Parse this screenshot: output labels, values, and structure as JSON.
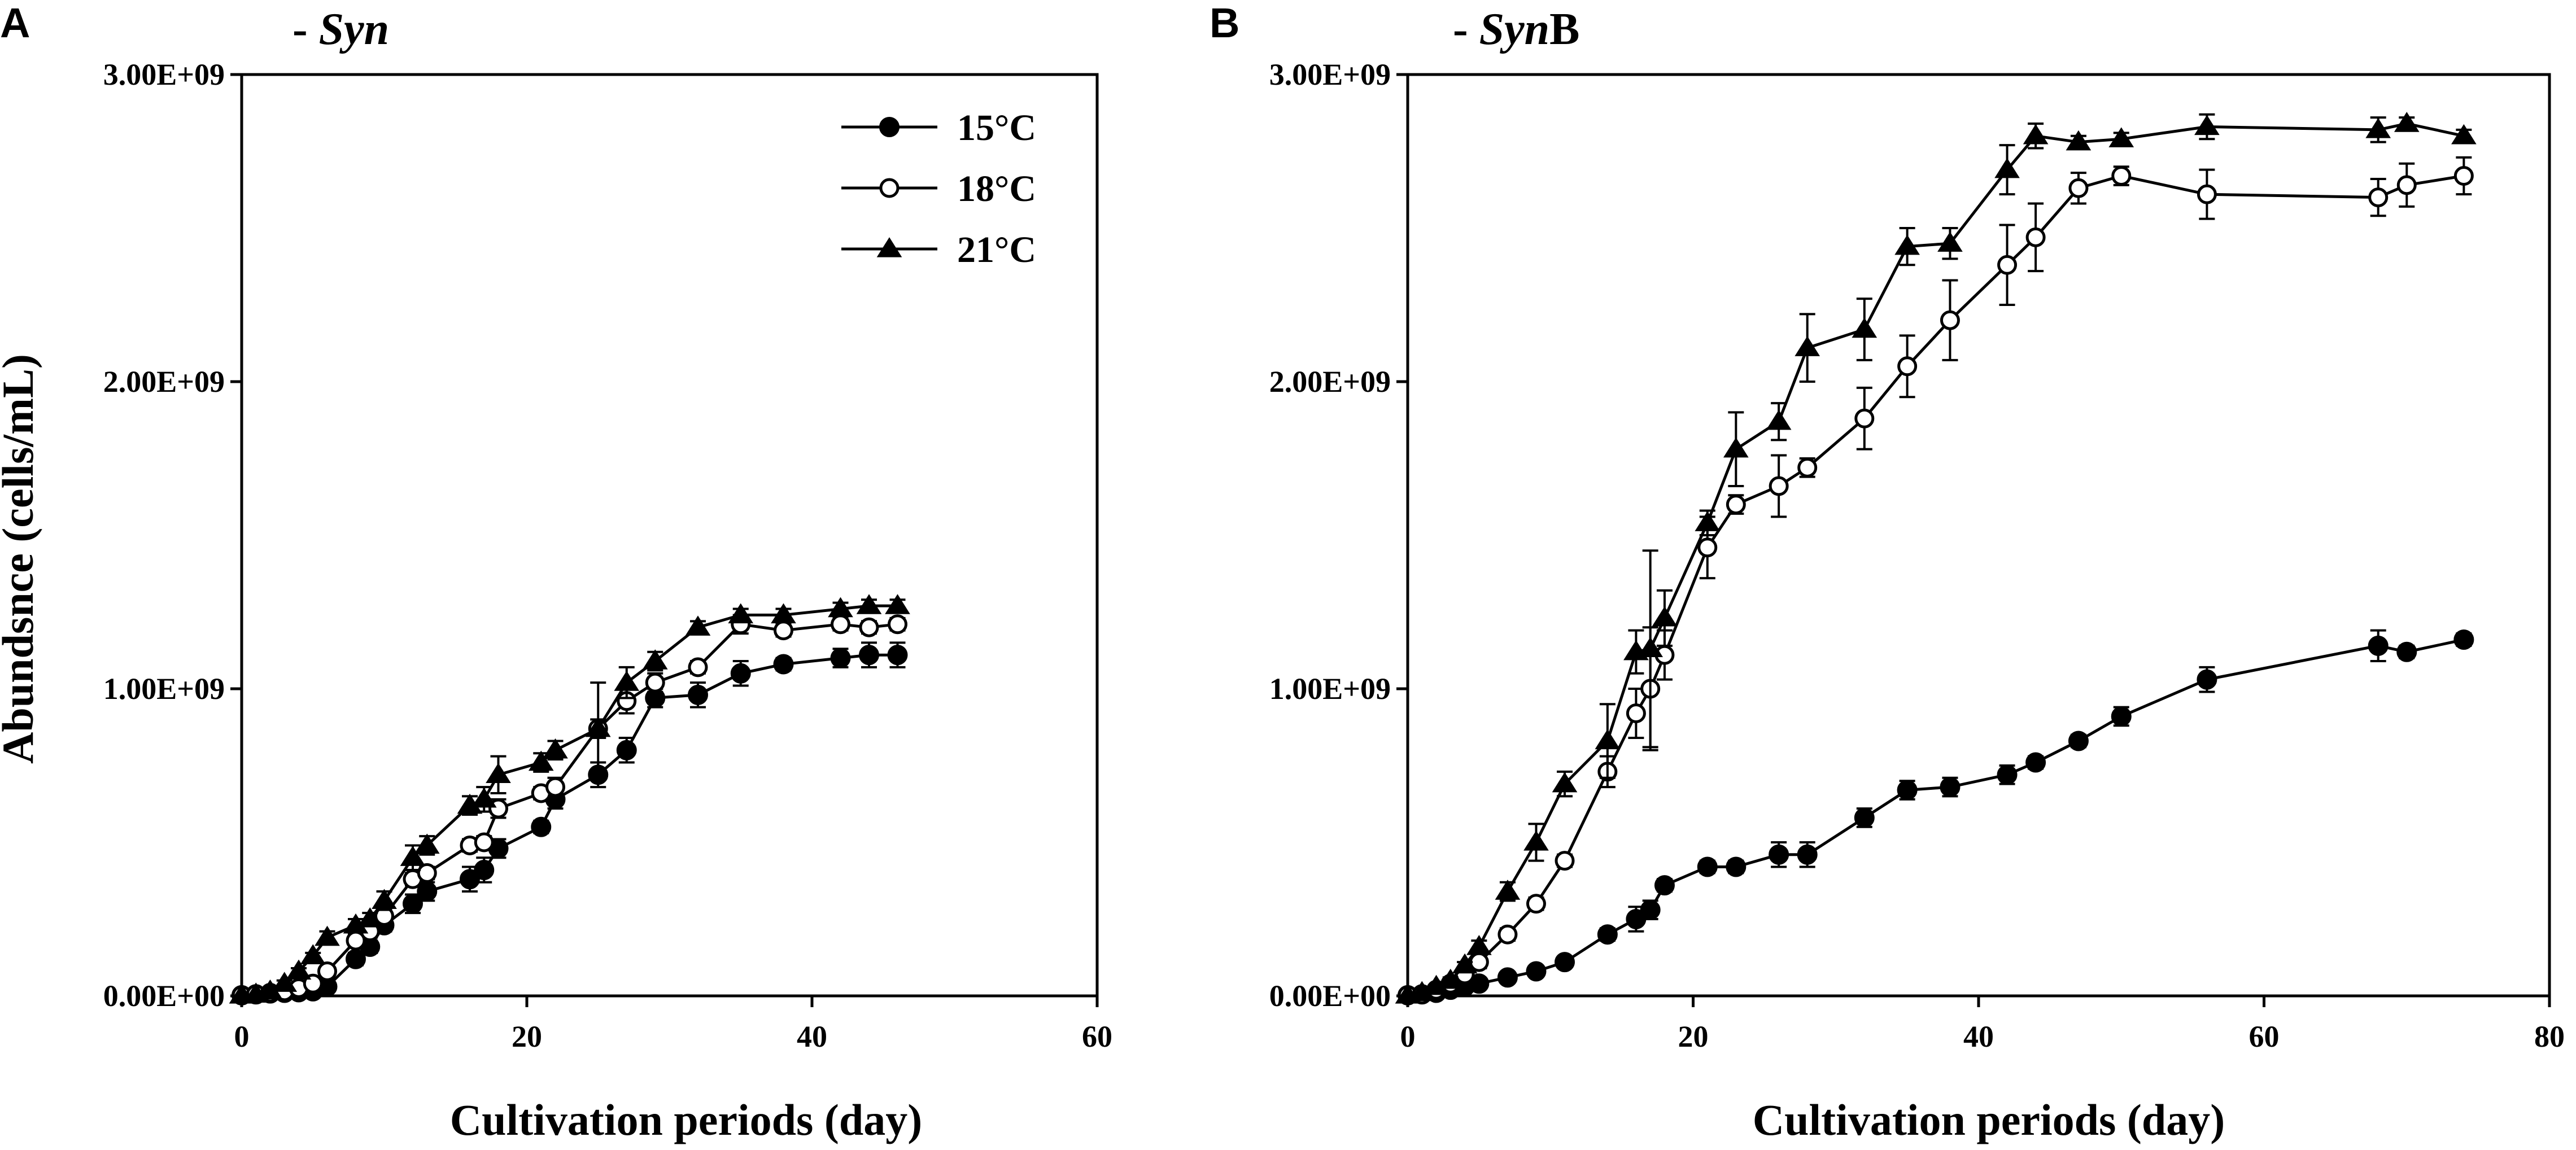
{
  "chart_data": [
    {
      "type": "line",
      "panel_label": "A",
      "title_prefix": "- ",
      "title_italic": "Syn",
      "title_suffix": "",
      "xlabel": "Cultivation periods (day)",
      "ylabel": "Abundsnce (cells/mL)",
      "xlim": [
        0,
        60
      ],
      "ylim": [
        0,
        3000000000
      ],
      "xticks": [
        0,
        20,
        40,
        60
      ],
      "xtick_labels": [
        "0",
        "20",
        "40",
        "60"
      ],
      "yticks": [
        0,
        1000000000,
        2000000000,
        3000000000
      ],
      "ytick_labels": [
        "0.00E+00",
        "1.00E+09",
        "2.00E+09",
        "3.00E+09"
      ],
      "legend": {
        "placement": "top-right",
        "entries": [
          "15°C",
          "18°C",
          "21°C"
        ]
      },
      "series": [
        {
          "name": "15°C",
          "marker": "filled-circle",
          "x": [
            0,
            1,
            2,
            3,
            4,
            5,
            6,
            8,
            9,
            10,
            12,
            13,
            16,
            17,
            18,
            21,
            22,
            25,
            27,
            29,
            32,
            35,
            38,
            42,
            44,
            46
          ],
          "y": [
            2000000,
            5000000,
            8000000,
            10000000,
            12000000,
            15000000,
            30000000,
            120000000,
            160000000,
            230000000,
            300000000,
            340000000,
            380000000,
            410000000,
            480000000,
            550000000,
            640000000,
            720000000,
            800000000,
            970000000,
            980000000,
            1050000000,
            1080000000,
            1100000000,
            1110000000,
            1110000000
          ],
          "err": [
            0,
            0,
            0,
            0,
            0,
            0,
            10000000,
            20000000,
            20000000,
            20000000,
            30000000,
            30000000,
            40000000,
            40000000,
            30000000,
            20000000,
            30000000,
            40000000,
            40000000,
            30000000,
            40000000,
            40000000,
            20000000,
            30000000,
            40000000,
            40000000
          ]
        },
        {
          "name": "18°C",
          "marker": "open-circle",
          "x": [
            0,
            1,
            2,
            3,
            4,
            5,
            6,
            8,
            9,
            10,
            12,
            13,
            16,
            17,
            18,
            21,
            22,
            25,
            27,
            29,
            32,
            35,
            38,
            42,
            44,
            46
          ],
          "y": [
            2000000,
            5000000,
            10000000,
            15000000,
            25000000,
            40000000,
            80000000,
            180000000,
            210000000,
            260000000,
            380000000,
            400000000,
            490000000,
            500000000,
            610000000,
            660000000,
            680000000,
            870000000,
            960000000,
            1020000000,
            1070000000,
            1210000000,
            1190000000,
            1210000000,
            1200000000,
            1210000000
          ],
          "err": [
            0,
            0,
            0,
            0,
            0,
            0,
            10000000,
            20000000,
            20000000,
            20000000,
            20000000,
            20000000,
            20000000,
            20000000,
            30000000,
            20000000,
            30000000,
            150000000,
            40000000,
            30000000,
            20000000,
            30000000,
            20000000,
            20000000,
            20000000,
            20000000
          ]
        },
        {
          "name": "21°C",
          "marker": "filled-triangle",
          "x": [
            0,
            1,
            2,
            3,
            4,
            5,
            6,
            8,
            9,
            10,
            12,
            13,
            16,
            17,
            18,
            21,
            22,
            25,
            27,
            29,
            32,
            35,
            38,
            42,
            44,
            46
          ],
          "y": [
            2000000,
            5000000,
            15000000,
            40000000,
            80000000,
            130000000,
            190000000,
            230000000,
            250000000,
            310000000,
            450000000,
            490000000,
            620000000,
            640000000,
            720000000,
            760000000,
            800000000,
            870000000,
            1020000000,
            1090000000,
            1200000000,
            1240000000,
            1240000000,
            1260000000,
            1270000000,
            1270000000
          ],
          "err": [
            0,
            0,
            0,
            10000000,
            10000000,
            10000000,
            20000000,
            20000000,
            20000000,
            30000000,
            40000000,
            30000000,
            30000000,
            40000000,
            60000000,
            30000000,
            30000000,
            30000000,
            50000000,
            30000000,
            20000000,
            20000000,
            20000000,
            20000000,
            20000000,
            20000000
          ]
        }
      ]
    },
    {
      "type": "line",
      "panel_label": "B",
      "title_prefix": "- ",
      "title_italic": "Syn",
      "title_suffix": "B",
      "xlabel": "Cultivation periods (day)",
      "ylabel": "",
      "xlim": [
        0,
        80
      ],
      "ylim": [
        0,
        3000000000
      ],
      "xticks": [
        0,
        20,
        40,
        60,
        80
      ],
      "xtick_labels": [
        "0",
        "20",
        "40",
        "60",
        "80"
      ],
      "yticks": [
        0,
        1000000000,
        2000000000,
        3000000000
      ],
      "ytick_labels": [
        "0.00E+00",
        "1.00E+09",
        "2.00E+09",
        "3.00E+09"
      ],
      "legend": {
        "placement": "none",
        "entries": []
      },
      "series": [
        {
          "name": "15°C",
          "marker": "filled-circle",
          "x": [
            0,
            1,
            2,
            3,
            4,
            5,
            7,
            9,
            11,
            14,
            16,
            17,
            18,
            21,
            23,
            26,
            28,
            32,
            35,
            38,
            42,
            44,
            47,
            50,
            56,
            68,
            70,
            74
          ],
          "y": [
            2000000,
            5000000,
            10000000,
            20000000,
            30000000,
            40000000,
            60000000,
            80000000,
            110000000,
            200000000,
            250000000,
            280000000,
            360000000,
            420000000,
            420000000,
            460000000,
            460000000,
            580000000,
            670000000,
            680000000,
            720000000,
            760000000,
            830000000,
            910000000,
            1030000000,
            1140000000,
            1120000000,
            1160000000
          ],
          "err": [
            0,
            0,
            0,
            0,
            0,
            0,
            10000000,
            10000000,
            10000000,
            20000000,
            40000000,
            30000000,
            20000000,
            20000000,
            20000000,
            40000000,
            40000000,
            30000000,
            30000000,
            30000000,
            30000000,
            20000000,
            20000000,
            30000000,
            40000000,
            50000000,
            20000000,
            20000000
          ]
        },
        {
          "name": "18°C",
          "marker": "open-circle",
          "x": [
            0,
            1,
            2,
            3,
            4,
            5,
            7,
            9,
            11,
            14,
            16,
            17,
            18,
            21,
            23,
            26,
            28,
            32,
            35,
            38,
            42,
            44,
            47,
            50,
            56,
            68,
            70,
            74
          ],
          "y": [
            2000000,
            5000000,
            20000000,
            40000000,
            70000000,
            110000000,
            200000000,
            300000000,
            440000000,
            730000000,
            920000000,
            1000000000,
            1110000000,
            1460000000,
            1600000000,
            1660000000,
            1720000000,
            1880000000,
            2050000000,
            2200000000,
            2380000000,
            2470000000,
            2630000000,
            2670000000,
            2610000000,
            2600000000,
            2640000000,
            2670000000
          ],
          "err": [
            0,
            0,
            0,
            10000000,
            10000000,
            20000000,
            20000000,
            20000000,
            20000000,
            50000000,
            80000000,
            200000000,
            80000000,
            100000000,
            30000000,
            100000000,
            30000000,
            100000000,
            100000000,
            130000000,
            130000000,
            110000000,
            50000000,
            30000000,
            80000000,
            60000000,
            70000000,
            60000000
          ]
        },
        {
          "name": "21°C",
          "marker": "filled-triangle",
          "x": [
            0,
            1,
            2,
            3,
            4,
            5,
            7,
            9,
            11,
            14,
            16,
            17,
            18,
            21,
            23,
            26,
            28,
            32,
            35,
            38,
            42,
            44,
            47,
            50,
            56,
            68,
            70,
            74
          ],
          "y": [
            2000000,
            10000000,
            30000000,
            50000000,
            100000000,
            160000000,
            340000000,
            500000000,
            690000000,
            830000000,
            1120000000,
            1130000000,
            1230000000,
            1540000000,
            1780000000,
            1870000000,
            2110000000,
            2170000000,
            2440000000,
            2450000000,
            2690000000,
            2800000000,
            2780000000,
            2790000000,
            2830000000,
            2820000000,
            2840000000,
            2800000000
          ],
          "err": [
            0,
            0,
            0,
            10000000,
            10000000,
            20000000,
            30000000,
            60000000,
            40000000,
            120000000,
            70000000,
            320000000,
            90000000,
            40000000,
            120000000,
            60000000,
            110000000,
            100000000,
            60000000,
            50000000,
            80000000,
            40000000,
            20000000,
            20000000,
            40000000,
            40000000,
            20000000,
            20000000
          ]
        }
      ]
    }
  ]
}
